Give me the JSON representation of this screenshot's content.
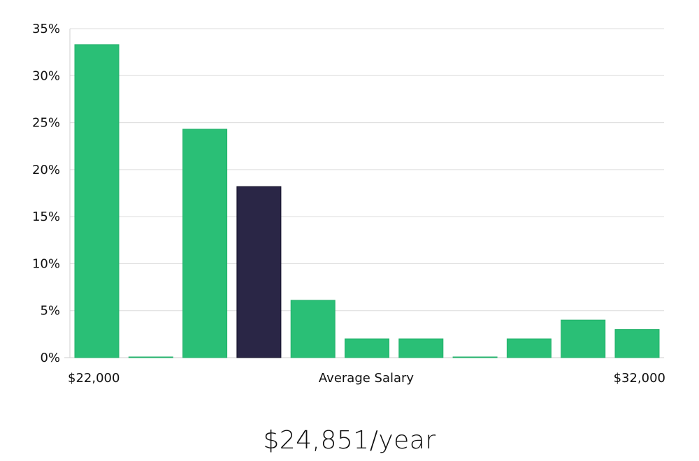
{
  "chart_data": {
    "type": "bar",
    "title": "",
    "xlabel": "Average Salary",
    "ylabel": "",
    "ylim": [
      0,
      35
    ],
    "yticks": [
      0,
      5,
      10,
      15,
      20,
      25,
      30,
      35
    ],
    "ytick_labels": [
      "0%",
      "5%",
      "10%",
      "15%",
      "20%",
      "25%",
      "30%",
      "35%"
    ],
    "x_min_label": "$22,000",
    "x_max_label": "$32,000",
    "bins": [
      "$22,000–$22,909",
      "$22,909–$23,818",
      "$23,818–$24,727",
      "$24,727–$25,636",
      "$25,636–$26,545",
      "$26,545–$27,455",
      "$27,455–$28,364",
      "$28,364–$29,273",
      "$29,273–$30,182",
      "$30,182–$31,091",
      "$31,091–$32,000"
    ],
    "values": [
      33.3,
      0,
      24.3,
      18.2,
      6.1,
      2.0,
      2.0,
      0,
      2.0,
      4.0,
      3.0
    ],
    "highlight_index": 3,
    "grid": true
  },
  "colors": {
    "bar": "#2abf76",
    "bar_edge": "#22b06a",
    "highlight": "#2a2646",
    "highlight_edge": "#15132a"
  },
  "summary": {
    "salary": "$24,851/year"
  }
}
